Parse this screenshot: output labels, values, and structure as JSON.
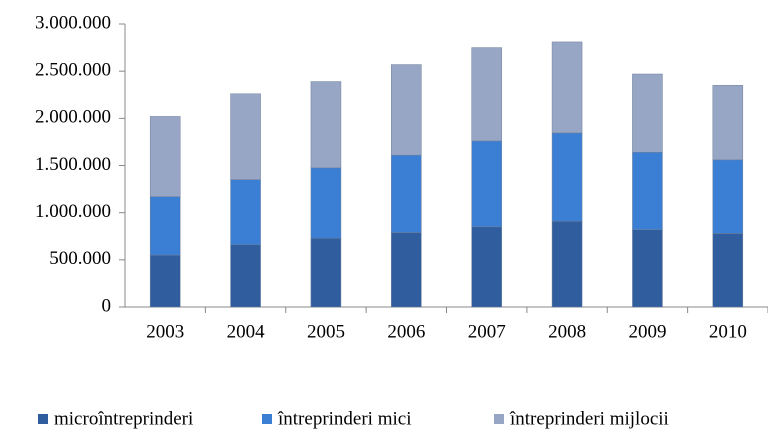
{
  "chart_data": {
    "type": "stacked_bar",
    "categories": [
      "2003",
      "2004",
      "2005",
      "2006",
      "2007",
      "2008",
      "2009",
      "2010"
    ],
    "series": [
      {
        "name": "microîntreprinderi",
        "color": "#2f5d9e",
        "values": [
          550000,
          660000,
          730000,
          790000,
          850000,
          910000,
          820000,
          780000
        ]
      },
      {
        "name": "întreprinderi mici",
        "color": "#3b7fd4",
        "values": [
          620000,
          690000,
          745000,
          820000,
          910000,
          935000,
          820000,
          780000
        ]
      },
      {
        "name": "întreprinderi mijlocii",
        "color": "#98a6c6",
        "values": [
          850000,
          910000,
          915000,
          960000,
          990000,
          965000,
          830000,
          790000
        ]
      }
    ],
    "ylim": [
      0,
      3000000
    ],
    "yticks": [
      0,
      {
        "value": 500000,
        "label": "500.000"
      },
      {
        "value": 1000000,
        "label": "1.000.000"
      },
      {
        "value": 1500000,
        "label": "1.500.000"
      },
      {
        "value": 2000000,
        "label": "2.000.000"
      },
      {
        "value": 2500000,
        "label": "2.500.000"
      },
      {
        "value": 3000000,
        "label": "3.000.000"
      }
    ]
  }
}
